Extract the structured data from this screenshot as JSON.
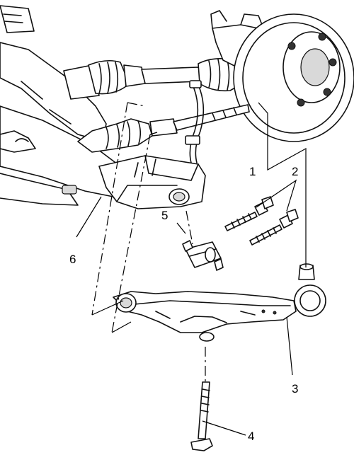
{
  "callouts": [
    "1",
    "2",
    "3",
    "4",
    "5",
    "6"
  ]
}
